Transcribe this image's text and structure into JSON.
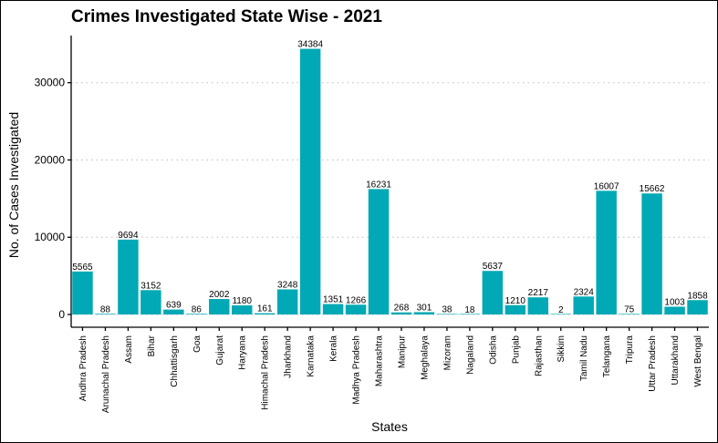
{
  "chart_data": {
    "type": "bar",
    "title": "Crimes Investigated State Wise - 2021",
    "xlabel": "States",
    "ylabel": "No. of Cases Investigated",
    "categories": [
      "Andhra Pradesh",
      "Arunachal Pradesh",
      "Assam",
      "Bihar",
      "Chhattisgarh",
      "Goa",
      "Gujarat",
      "Haryana",
      "Himachal Pradesh",
      "Jharkhand",
      "Karnataka",
      "Kerala",
      "Madhya Pradesh",
      "Maharashtra",
      "Manipur",
      "Meghalaya",
      "Mizoram",
      "Nagaland",
      "Odisha",
      "Punjab",
      "Rajasthan",
      "Sikkim",
      "Tamil Nadu",
      "Telangana",
      "Tripura",
      "Uttar Pradesh",
      "Uttarakhand",
      "West Bengal"
    ],
    "values": [
      5565,
      88,
      9694,
      3152,
      639,
      86,
      2002,
      1180,
      161,
      3248,
      34384,
      1351,
      1266,
      16231,
      268,
      301,
      38,
      18,
      5637,
      1210,
      2217,
      2,
      2324,
      16007,
      75,
      15662,
      1003,
      1858
    ],
    "yticks": [
      0,
      10000,
      20000,
      30000
    ],
    "ylim": [
      -1650,
      36100
    ],
    "grid": "horizontal dotted",
    "legend": "none",
    "bar_color": "#00A9B5"
  }
}
